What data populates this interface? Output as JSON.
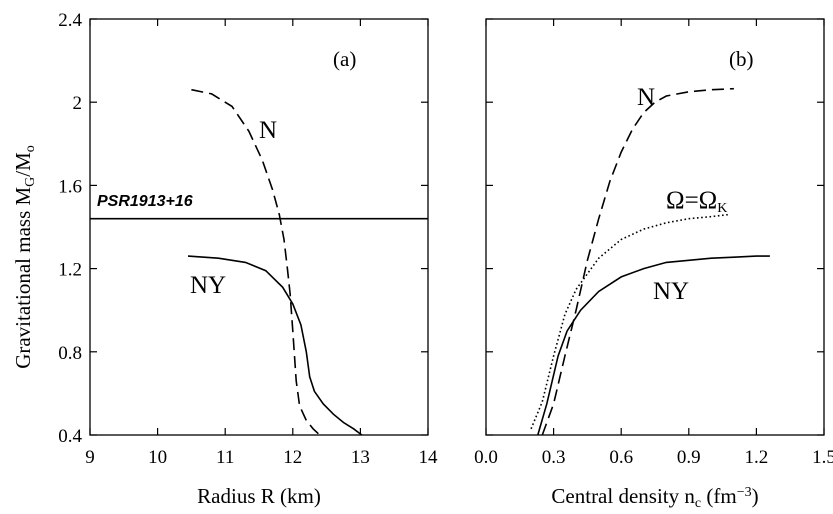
{
  "figure": {
    "y_label_main": "Gravitational mass M",
    "y_label_sub_G": "G",
    "y_label_slash": "/M",
    "y_label_sub_o": "o"
  },
  "chart_data": [
    {
      "type": "line",
      "panel_label": "(a)",
      "xlabel": "Radius R (km)",
      "ylabel": "Gravitational mass M_G/M_o",
      "xlim": [
        9,
        14
      ],
      "ylim": [
        0.4,
        2.4
      ],
      "xticks": [
        "9",
        "10",
        "11",
        "12",
        "13",
        "14"
      ],
      "yticks": [
        "0.4",
        "0.8",
        "1.2",
        "1.6",
        "2",
        "2.4"
      ],
      "grid": false,
      "series": [
        {
          "name": "N",
          "style": "dashed",
          "color": "#000000",
          "x": [
            10.5,
            10.8,
            11.1,
            11.35,
            11.55,
            11.7,
            11.8,
            11.87,
            11.92,
            11.96,
            12.0,
            12.05,
            12.1,
            12.2,
            12.3,
            12.4
          ],
          "y": [
            2.06,
            2.04,
            1.98,
            1.86,
            1.72,
            1.58,
            1.46,
            1.34,
            1.2,
            1.08,
            0.9,
            0.66,
            0.54,
            0.47,
            0.43,
            0.4
          ]
        },
        {
          "name": "NY",
          "style": "solid",
          "color": "#000000",
          "x": [
            10.45,
            10.9,
            11.3,
            11.6,
            11.85,
            12.0,
            12.12,
            12.2,
            12.25,
            12.32,
            12.45,
            12.6,
            12.75,
            12.9,
            13.02
          ],
          "y": [
            1.26,
            1.25,
            1.23,
            1.19,
            1.11,
            1.03,
            0.93,
            0.8,
            0.68,
            0.61,
            0.55,
            0.5,
            0.46,
            0.43,
            0.4
          ]
        }
      ],
      "hline": {
        "label": "PSR1913+16",
        "y": 1.44
      }
    },
    {
      "type": "line",
      "panel_label": "(b)",
      "xlabel_main": "Central density n",
      "xlabel_sub": "c",
      "xlabel_unit": " (fm",
      "xlabel_sup": "−3",
      "xlabel_close": ")",
      "xlim": [
        0.0,
        1.5
      ],
      "ylim": [
        0.4,
        2.4
      ],
      "xticks": [
        "0.0",
        "0.3",
        "0.6",
        "0.9",
        "1.2",
        "1.5"
      ],
      "grid": false,
      "series": [
        {
          "name": "N",
          "style": "dashed",
          "color": "#000000",
          "x": [
            0.25,
            0.3,
            0.35,
            0.4,
            0.45,
            0.5,
            0.55,
            0.6,
            0.65,
            0.7,
            0.75,
            0.8,
            0.9,
            1.0,
            1.1
          ],
          "y": [
            0.4,
            0.55,
            0.78,
            1.0,
            1.24,
            1.44,
            1.62,
            1.76,
            1.87,
            1.95,
            2.0,
            2.03,
            2.05,
            2.06,
            2.065
          ]
        },
        {
          "name": "Ω=Ω",
          "name_sub": "K",
          "style": "dotted",
          "color": "#000000",
          "x": [
            0.2,
            0.25,
            0.3,
            0.35,
            0.4,
            0.5,
            0.6,
            0.7,
            0.8,
            0.9,
            1.0,
            1.08
          ],
          "y": [
            0.43,
            0.56,
            0.78,
            0.98,
            1.1,
            1.25,
            1.34,
            1.39,
            1.42,
            1.44,
            1.45,
            1.46
          ]
        },
        {
          "name": "NY",
          "style": "solid",
          "color": "#000000",
          "x": [
            0.23,
            0.27,
            0.32,
            0.36,
            0.42,
            0.5,
            0.6,
            0.7,
            0.8,
            0.9,
            1.0,
            1.1,
            1.2,
            1.26
          ],
          "y": [
            0.4,
            0.55,
            0.78,
            0.9,
            1.0,
            1.09,
            1.16,
            1.2,
            1.23,
            1.24,
            1.25,
            1.255,
            1.26,
            1.26
          ]
        }
      ]
    }
  ]
}
